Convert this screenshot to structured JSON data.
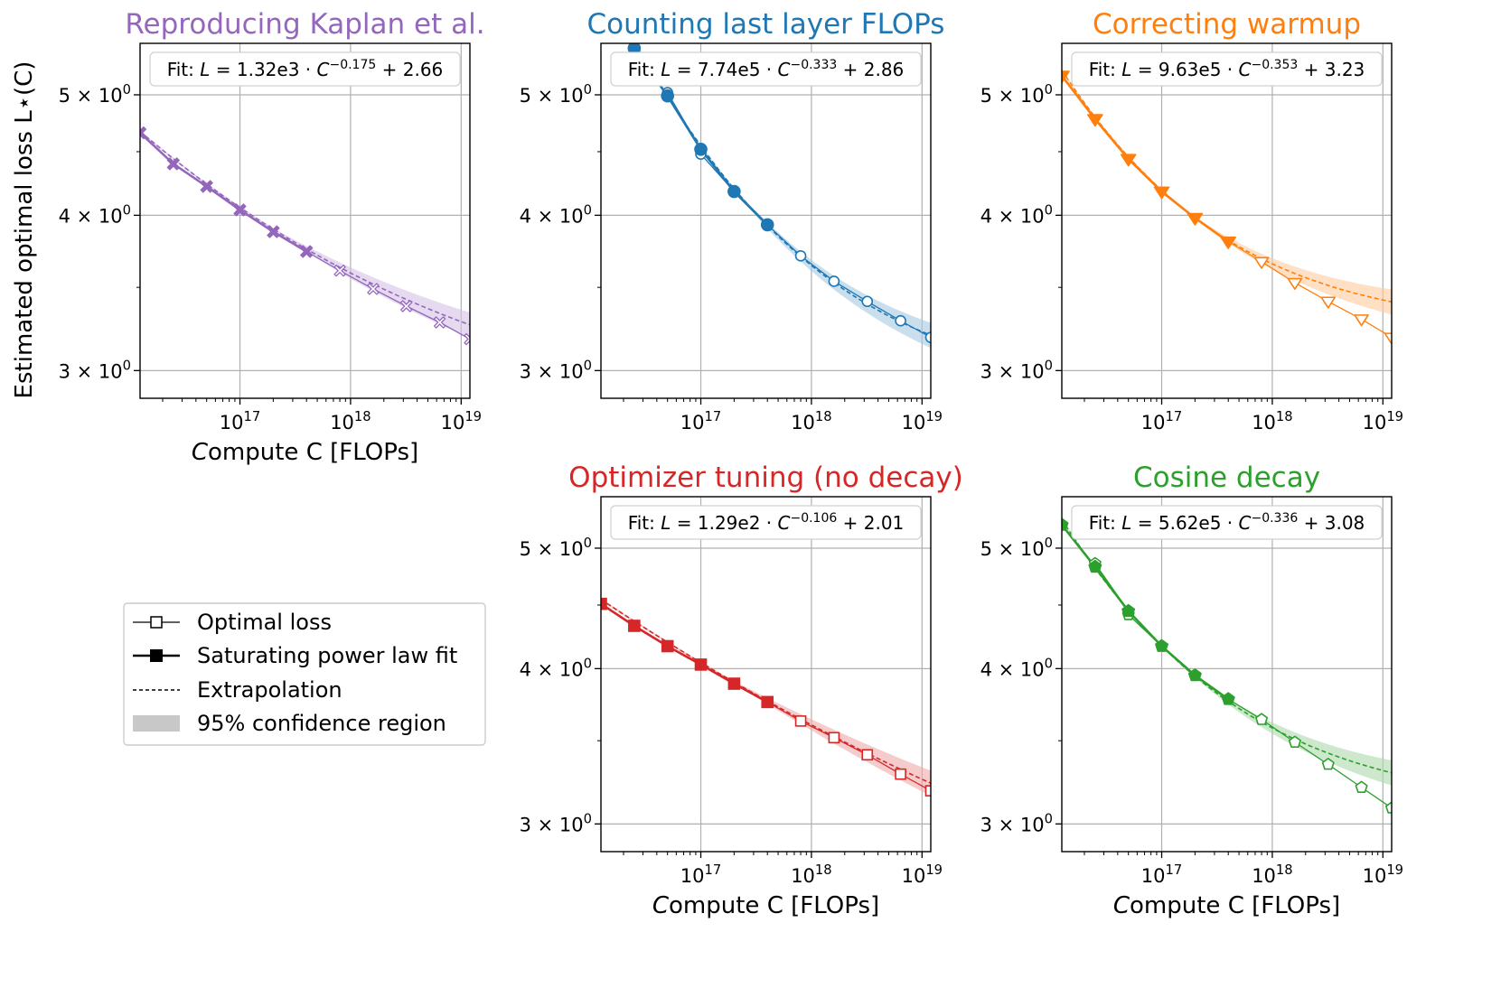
{
  "figure": {
    "ylabel": "Estimated optimal loss L⋆(C)",
    "xlabel": "Compute C [FLOPs]"
  },
  "legend": {
    "items": [
      {
        "key": "optimal",
        "label": "Optimal loss"
      },
      {
        "key": "fit",
        "label": "Saturating power law fit"
      },
      {
        "key": "extrap",
        "label": "Extrapolation"
      },
      {
        "key": "conf",
        "label": "95% confidence region"
      }
    ]
  },
  "chart_data": [
    {
      "type": "line",
      "title": "Reproducing Kaplan et al.",
      "color": "#9467bd",
      "marker": "x",
      "fit_text": "Fit: L = 1.32e3 · C^(−0.175) + 2.66",
      "fit": {
        "prefix": "Fit: ",
        "coef": "1.32e3",
        "exp": "−0.175",
        "c": "2.66",
        "a": 1320,
        "b": -0.175,
        "e": 2.66
      },
      "xscale": "log",
      "yscale": "log",
      "xlim": [
        1.25e+16,
        1.2e+19
      ],
      "ylim": [
        2.85,
        5.5
      ],
      "xticks": [
        {
          "value": 1e+17,
          "label": "10^17"
        },
        {
          "value": 1e+18,
          "label": "10^18"
        },
        {
          "value": 1e+19,
          "label": "10^19"
        }
      ],
      "yticks": [
        {
          "value": 3,
          "label": "3 × 10^0"
        },
        {
          "value": 4,
          "label": "4 × 10^0"
        },
        {
          "value": 5,
          "label": "5 × 10^0"
        }
      ],
      "fit_points": [
        [
          1.25e+16,
          4.66
        ],
        [
          2.5e+16,
          4.4
        ],
        [
          5e+16,
          4.22
        ],
        [
          1e+17,
          4.04
        ],
        [
          2e+17,
          3.88
        ],
        [
          4e+17,
          3.74
        ]
      ],
      "extrap_points": [
        [
          8e+17,
          3.61
        ],
        [
          1.6e+18,
          3.49
        ],
        [
          3.2e+18,
          3.38
        ],
        [
          6.4e+18,
          3.28
        ],
        [
          1.2e+19,
          3.18
        ]
      ],
      "show_ylabel": true,
      "show_xlabel": true
    },
    {
      "type": "line",
      "title": "Counting last layer FLOPs",
      "color": "#1f77b4",
      "marker": "circle",
      "fit_text": "Fit: L = 7.74e5 · C^(−0.333) + 2.86",
      "fit": {
        "prefix": "Fit: ",
        "coef": "7.74e5",
        "exp": "−0.333",
        "c": "2.86",
        "a": 774000,
        "b": -0.333,
        "e": 2.86
      },
      "xscale": "log",
      "yscale": "log",
      "xlim": [
        1.25e+16,
        1.2e+19
      ],
      "ylim": [
        2.85,
        5.5
      ],
      "xticks": [
        {
          "value": 1e+17,
          "label": "10^17"
        },
        {
          "value": 1e+18,
          "label": "10^18"
        },
        {
          "value": 1e+19,
          "label": "10^19"
        }
      ],
      "yticks": [
        {
          "value": 3,
          "label": "3 × 10^0"
        },
        {
          "value": 4,
          "label": "4 × 10^0"
        },
        {
          "value": 5,
          "label": "5 × 10^0"
        }
      ],
      "fit_points": [
        [
          2.5e+16,
          5.45
        ],
        [
          5e+16,
          4.99
        ],
        [
          1e+17,
          4.52
        ],
        [
          2e+17,
          4.18
        ],
        [
          4e+17,
          3.93
        ]
      ],
      "extrap_points": [
        [
          2.5e+16,
          5.45
        ],
        [
          5e+16,
          5.02
        ],
        [
          1e+17,
          4.48
        ],
        [
          8e+17,
          3.71
        ],
        [
          1.6e+18,
          3.54
        ],
        [
          3.2e+18,
          3.41
        ],
        [
          6.4e+18,
          3.29
        ],
        [
          1.2e+19,
          3.19
        ]
      ],
      "show_ylabel": false,
      "show_xlabel": false
    },
    {
      "type": "line",
      "title": "Correcting warmup",
      "color": "#ff7f0e",
      "marker": "triangle-down",
      "fit_text": "Fit: L = 9.63e5 · C^(−0.353) + 3.23",
      "fit": {
        "prefix": "Fit: ",
        "coef": "9.63e5",
        "exp": "−0.353",
        "c": "3.23",
        "a": 963000,
        "b": -0.353,
        "e": 3.23
      },
      "xscale": "log",
      "yscale": "log",
      "xlim": [
        1.25e+16,
        1.2e+19
      ],
      "ylim": [
        2.85,
        5.5
      ],
      "xticks": [
        {
          "value": 1e+17,
          "label": "10^17"
        },
        {
          "value": 1e+18,
          "label": "10^18"
        },
        {
          "value": 1e+19,
          "label": "10^19"
        }
      ],
      "yticks": [
        {
          "value": 3,
          "label": "3 × 10^0"
        },
        {
          "value": 4,
          "label": "4 × 10^0"
        },
        {
          "value": 5,
          "label": "5 × 10^0"
        }
      ],
      "fit_points": [
        [
          1.25e+16,
          5.18
        ],
        [
          2.5e+16,
          4.78
        ],
        [
          5e+16,
          4.44
        ],
        [
          1e+17,
          4.18
        ],
        [
          2e+17,
          3.98
        ],
        [
          4e+17,
          3.81
        ]
      ],
      "extrap_points": [
        [
          8e+17,
          3.67
        ],
        [
          1.6e+18,
          3.53
        ],
        [
          3.2e+18,
          3.41
        ],
        [
          6.4e+18,
          3.3
        ],
        [
          1.2e+19,
          3.19
        ]
      ],
      "show_ylabel": false,
      "show_xlabel": false
    },
    {
      "type": "line",
      "title": "Optimizer tuning (no decay)",
      "color": "#d62728",
      "marker": "square",
      "fit_text": "Fit: L = 1.29e2 · C^(−0.106) + 2.01",
      "fit": {
        "prefix": "Fit: ",
        "coef": "1.29e2",
        "exp": "−0.106",
        "c": "2.01",
        "a": 129,
        "b": -0.106,
        "e": 2.01
      },
      "xscale": "log",
      "yscale": "log",
      "xlim": [
        1.25e+16,
        1.2e+19
      ],
      "ylim": [
        2.85,
        5.5
      ],
      "xticks": [
        {
          "value": 1e+17,
          "label": "10^17"
        },
        {
          "value": 1e+18,
          "label": "10^18"
        },
        {
          "value": 1e+19,
          "label": "10^19"
        }
      ],
      "yticks": [
        {
          "value": 3,
          "label": "3 × 10^0"
        },
        {
          "value": 4,
          "label": "4 × 10^0"
        },
        {
          "value": 5,
          "label": "5 × 10^0"
        }
      ],
      "fit_points": [
        [
          1.25e+16,
          4.51
        ],
        [
          2.5e+16,
          4.33
        ],
        [
          5e+16,
          4.17
        ],
        [
          1e+17,
          4.03
        ],
        [
          2e+17,
          3.89
        ],
        [
          4e+17,
          3.76
        ]
      ],
      "extrap_points": [
        [
          8e+17,
          3.63
        ],
        [
          1.6e+18,
          3.52
        ],
        [
          3.2e+18,
          3.41
        ],
        [
          6.4e+18,
          3.29
        ],
        [
          1.2e+19,
          3.19
        ]
      ],
      "show_ylabel": false,
      "show_xlabel": true
    },
    {
      "type": "line",
      "title": "Cosine decay",
      "color": "#2ca02c",
      "marker": "pentagon",
      "fit_text": "Fit: L = 5.62e5 · C^(−0.336) + 3.08",
      "fit": {
        "prefix": "Fit: ",
        "coef": "5.62e5",
        "exp": "−0.336",
        "c": "3.08",
        "a": 562000,
        "b": -0.336,
        "e": 3.08
      },
      "xscale": "log",
      "yscale": "log",
      "xlim": [
        1.25e+16,
        1.2e+19
      ],
      "ylim": [
        2.85,
        5.5
      ],
      "xticks": [
        {
          "value": 1e+17,
          "label": "10^17"
        },
        {
          "value": 1e+18,
          "label": "10^18"
        },
        {
          "value": 1e+19,
          "label": "10^19"
        }
      ],
      "yticks": [
        {
          "value": 3,
          "label": "3 × 10^0"
        },
        {
          "value": 4,
          "label": "4 × 10^0"
        },
        {
          "value": 5,
          "label": "5 × 10^0"
        }
      ],
      "fit_points": [
        [
          1.25e+16,
          5.22
        ],
        [
          2.5e+16,
          4.83
        ],
        [
          5e+16,
          4.45
        ],
        [
          1e+17,
          4.17
        ],
        [
          2e+17,
          3.95
        ],
        [
          4e+17,
          3.78
        ]
      ],
      "extrap_points": [
        [
          2.5e+16,
          4.86
        ],
        [
          5e+16,
          4.42
        ],
        [
          8e+17,
          3.64
        ],
        [
          1.6e+18,
          3.49
        ],
        [
          3.2e+18,
          3.35
        ],
        [
          6.4e+18,
          3.21
        ],
        [
          1.2e+19,
          3.09
        ]
      ],
      "show_ylabel": false,
      "show_xlabel": true
    }
  ]
}
